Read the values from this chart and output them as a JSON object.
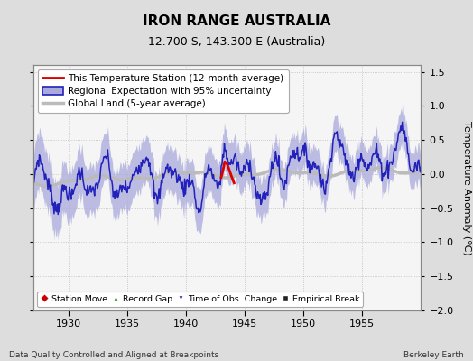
{
  "title": "IRON RANGE AUSTRALIA",
  "subtitle": "12.700 S, 143.300 E (Australia)",
  "xlabel_bottom": "Data Quality Controlled and Aligned at Breakpoints",
  "xlabel_right": "Berkeley Earth",
  "ylabel": "Temperature Anomaly (°C)",
  "xlim": [
    1927.0,
    1960.0
  ],
  "ylim": [
    -2.0,
    1.6
  ],
  "yticks": [
    -2.0,
    -1.5,
    -1.0,
    -0.5,
    0.0,
    0.5,
    1.0,
    1.5
  ],
  "xticks": [
    1930,
    1935,
    1940,
    1945,
    1950,
    1955
  ],
  "bg_color": "#dddddd",
  "plot_bg_color": "#f5f5f5",
  "regional_line_color": "#2222bb",
  "regional_fill_color": "#aaaadd",
  "station_line_color": "#dd0000",
  "global_line_color": "#bbbbbb",
  "title_fontsize": 11,
  "subtitle_fontsize": 9,
  "legend_fontsize": 7.5,
  "tick_fontsize": 8,
  "ylabel_fontsize": 8
}
